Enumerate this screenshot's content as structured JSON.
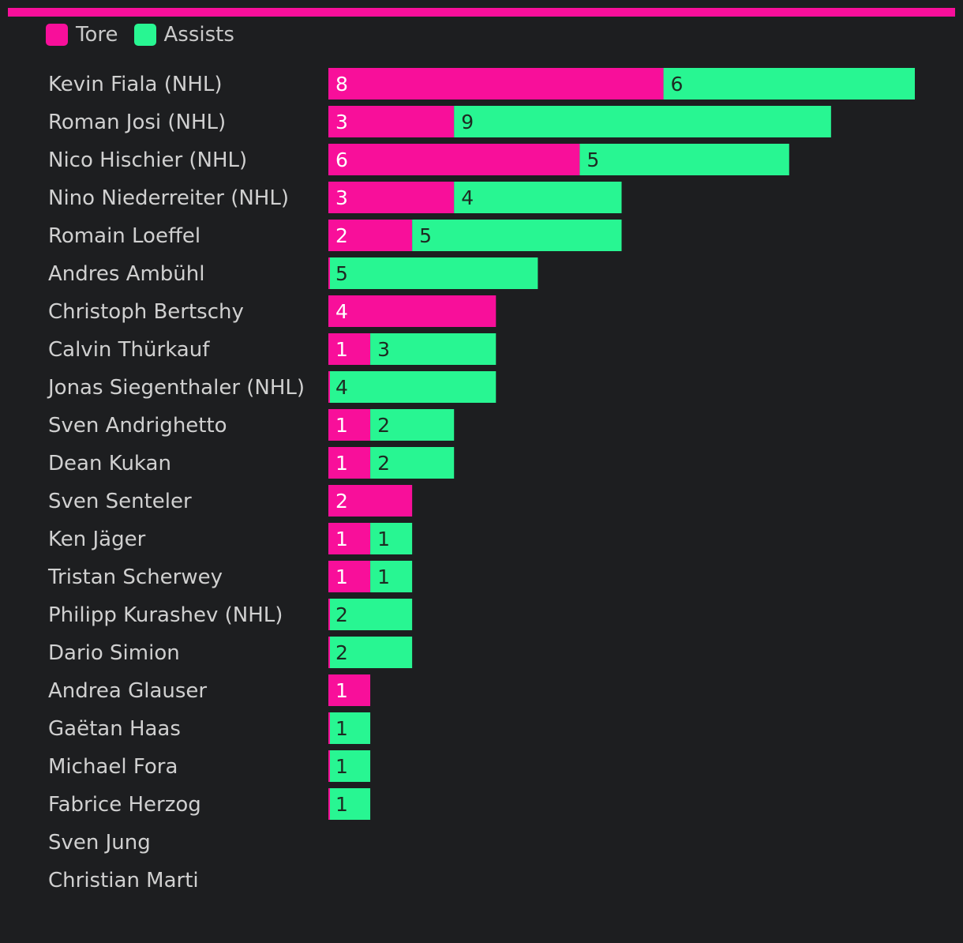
{
  "colors": {
    "background": "#1d1e20",
    "tore": "#f80f9a",
    "assists": "#28f692",
    "tore_label_text": "#ffffff",
    "assists_label_text": "#1d2a22",
    "player_label_text": "#d0d0d0"
  },
  "chart_data": {
    "type": "bar",
    "orientation": "horizontal",
    "stacked": true,
    "title": "",
    "xlabel": "",
    "ylabel": "",
    "legend_position": "top-left",
    "grid": false,
    "xlim": [
      0,
      14
    ],
    "categories": [
      "Kevin Fiala (NHL)",
      "Roman Josi (NHL)",
      "Nico Hischier (NHL)",
      "Nino Niederreiter (NHL)",
      "Romain Loeffel",
      "Andres Ambühl",
      "Christoph Bertschy",
      "Calvin Thürkauf",
      "Jonas Siegenthaler (NHL)",
      "Sven Andrighetto",
      "Dean Kukan",
      "Sven Senteler",
      "Ken Jäger",
      "Tristan Scherwey",
      "Philipp Kurashev (NHL)",
      "Dario Simion",
      "Andrea Glauser",
      "Gaëtan Haas",
      "Michael Fora",
      "Fabrice Herzog",
      "Sven Jung",
      "Christian Marti"
    ],
    "series": [
      {
        "name": "Tore",
        "values": [
          8,
          3,
          6,
          3,
          2,
          0,
          4,
          1,
          0,
          1,
          1,
          2,
          1,
          1,
          0,
          0,
          1,
          0,
          0,
          0,
          0,
          0
        ]
      },
      {
        "name": "Assists",
        "values": [
          6,
          9,
          5,
          4,
          5,
          5,
          0,
          3,
          4,
          2,
          2,
          0,
          1,
          1,
          2,
          2,
          0,
          1,
          1,
          1,
          0,
          0
        ]
      }
    ]
  }
}
